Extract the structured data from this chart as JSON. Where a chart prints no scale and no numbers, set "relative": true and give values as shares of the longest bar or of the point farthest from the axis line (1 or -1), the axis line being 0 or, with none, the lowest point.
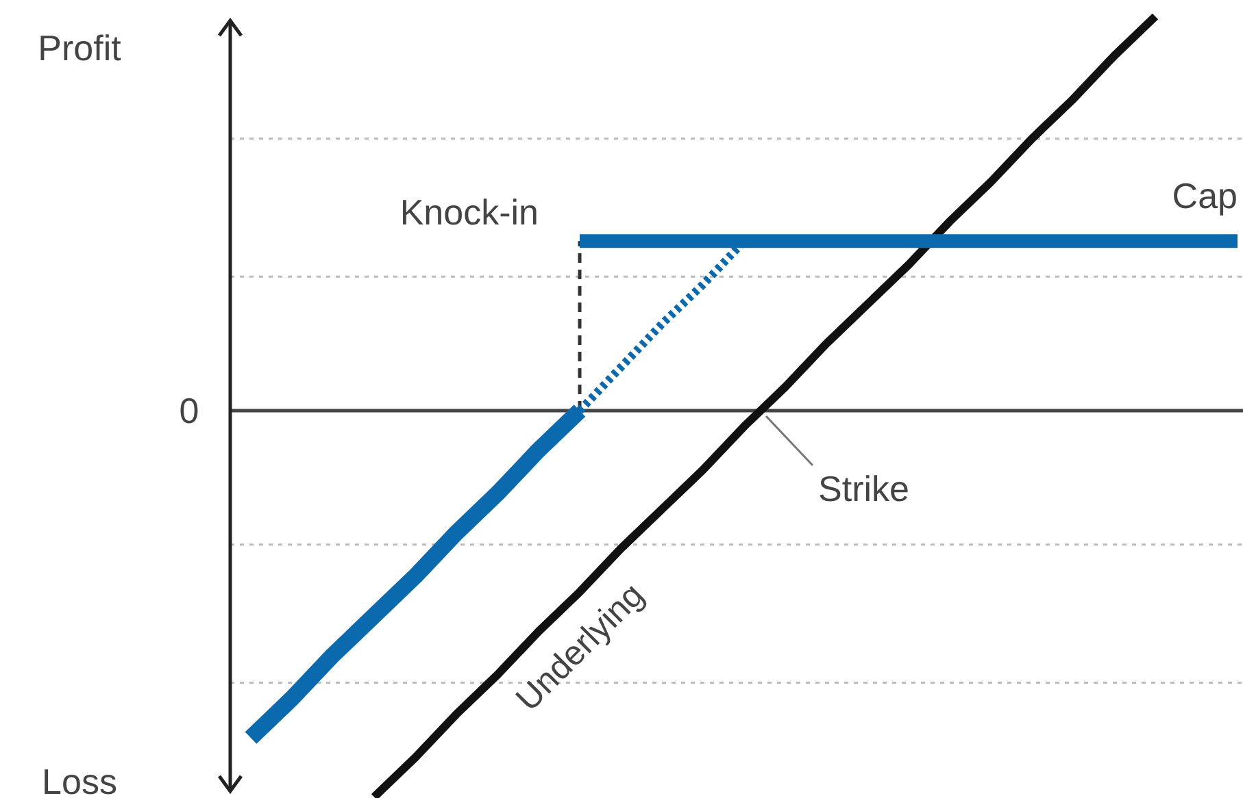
{
  "chart_data": {
    "type": "line",
    "relative": true,
    "legend": false,
    "categories": [
      null,
      null,
      null,
      null,
      null,
      null,
      null,
      null,
      null,
      null,
      null,
      null,
      null,
      null,
      null,
      null,
      null,
      null,
      null,
      null,
      null,
      null,
      null,
      null,
      null
    ],
    "series": [
      {
        "name": "Underlying",
        "color": "#111111",
        "values": [
          null,
          null,
          null,
          -0.98,
          -0.88,
          -0.77,
          -0.67,
          -0.56,
          -0.46,
          -0.35,
          -0.25,
          -0.15,
          -0.04,
          0.06,
          0.17,
          0.27,
          0.37,
          0.48,
          0.58,
          0.69,
          0.79,
          0.9,
          1,
          null,
          null
        ]
      },
      {
        "color": "#0b6aae",
        "values": [
          -0.83,
          -0.73,
          -0.62,
          -0.52,
          -0.42,
          -0.31,
          -0.21,
          -0.1,
          0,
          null,
          null,
          null,
          null,
          null,
          null,
          null,
          null,
          null,
          null,
          null,
          null,
          null,
          null,
          null,
          null
        ]
      },
      {
        "color": "#0b6aae",
        "values": [
          null,
          null,
          null,
          null,
          null,
          null,
          null,
          null,
          0.43,
          0.43,
          0.43,
          0.43,
          0.43,
          0.43,
          0.43,
          0.43,
          0.43,
          0.43,
          0.43,
          0.43,
          0.43,
          0.43,
          0.43,
          0.43,
          0.43
        ]
      },
      {
        "color": "#0b6aae",
        "line_style": "dotted",
        "values": [
          null,
          null,
          null,
          null,
          null,
          null,
          null,
          null,
          0,
          0.11,
          0.22,
          0.32,
          0.43,
          null,
          null,
          null,
          null,
          null,
          null,
          null,
          null,
          null,
          null,
          null,
          null
        ]
      }
    ],
    "ref_lines": [
      {
        "axis": "y",
        "value": -0.69,
        "label": null,
        "color": "#bbbbbb",
        "line_style": "dotted"
      },
      {
        "axis": "y",
        "value": -0.34,
        "label": null,
        "color": "#bbbbbb",
        "line_style": "dotted"
      },
      {
        "axis": "y",
        "value": 0.34,
        "label": null,
        "color": "#bbbbbb",
        "line_style": "dotted"
      },
      {
        "axis": "y",
        "value": 0.69,
        "label": null,
        "color": "#bbbbbb",
        "line_style": "dotted"
      }
    ],
    "annotations": [
      "Profit",
      "Loss",
      "0",
      "Knock-in",
      "Cap",
      "Strike"
    ]
  }
}
